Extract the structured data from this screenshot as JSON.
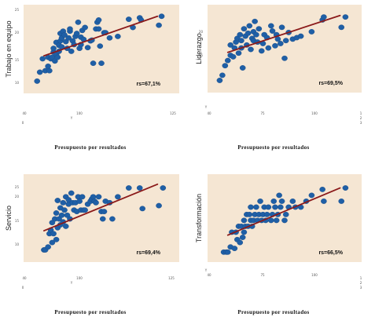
{
  "chart_data": [
    {
      "type": "scatter",
      "ylabel": "Trabajo en equipo",
      "xlabel": "Presupuesto por resultados",
      "annotation": "rs=67,1%",
      "xlim": [
        0,
        100
      ],
      "ylim": [
        0,
        100
      ],
      "y_ticks": [
        "25",
        "20",
        "15",
        "10"
      ],
      "x_ticks": [
        "40",
        "100",
        "125"
      ],
      "x_tick_extra": [
        "0",
        "Y"
      ],
      "colors": {
        "point": "#1f5fa6",
        "line": "#8b1a1a",
        "background": "#f5e6d3"
      },
      "trend": [
        [
          8,
          42
        ],
        [
          91,
          95
        ]
      ],
      "points": [
        [
          3,
          8
        ],
        [
          5,
          20
        ],
        [
          7,
          38
        ],
        [
          9,
          22
        ],
        [
          11,
          28
        ],
        [
          11,
          40
        ],
        [
          12,
          22
        ],
        [
          13,
          38
        ],
        [
          14,
          40
        ],
        [
          15,
          47
        ],
        [
          15,
          52
        ],
        [
          16,
          35
        ],
        [
          17,
          60
        ],
        [
          17,
          44
        ],
        [
          18,
          40
        ],
        [
          19,
          56
        ],
        [
          19,
          48
        ],
        [
          20,
          72
        ],
        [
          20,
          62
        ],
        [
          21,
          54
        ],
        [
          21,
          66
        ],
        [
          22,
          75
        ],
        [
          23,
          70
        ],
        [
          24,
          61
        ],
        [
          25,
          52
        ],
        [
          26,
          66
        ],
        [
          27,
          75
        ],
        [
          27,
          78
        ],
        [
          28,
          48
        ],
        [
          29,
          62
        ],
        [
          30,
          57
        ],
        [
          31,
          68
        ],
        [
          32,
          72
        ],
        [
          33,
          87
        ],
        [
          34,
          52
        ],
        [
          35,
          57
        ],
        [
          35,
          67
        ],
        [
          36,
          76
        ],
        [
          37,
          64
        ],
        [
          38,
          80
        ],
        [
          40,
          53
        ],
        [
          42,
          62
        ],
        [
          43,
          63
        ],
        [
          44,
          32
        ],
        [
          46,
          78
        ],
        [
          47,
          87
        ],
        [
          48,
          90
        ],
        [
          48,
          78
        ],
        [
          49,
          55
        ],
        [
          50,
          32
        ],
        [
          52,
          73
        ],
        [
          53,
          73
        ],
        [
          56,
          66
        ],
        [
          62,
          68
        ],
        [
          70,
          91
        ],
        [
          73,
          80
        ],
        [
          78,
          93
        ],
        [
          79,
          90
        ],
        [
          92,
          83
        ],
        [
          94,
          95
        ]
      ]
    },
    {
      "type": "scatter",
      "ylabel": "Liderazgo",
      "xlabel": "Presupuesto por resultados",
      "annotation": "rs=69,5%",
      "xlim": [
        0,
        100
      ],
      "ylim": [
        0,
        100
      ],
      "y_ticks": [
        "20",
        "15"
      ],
      "x_ticks": [
        "40",
        "75",
        "100"
      ],
      "x_tick_extra": [
        "1",
        "2",
        "3",
        "Y"
      ],
      "colors": {
        "point": "#1f5fa6",
        "line": "#8b1a1a",
        "background": "#f5e6d3"
      },
      "trend": [
        [
          8,
          46
        ],
        [
          91,
          96
        ]
      ],
      "points": [
        [
          2,
          8
        ],
        [
          4,
          15
        ],
        [
          6,
          28
        ],
        [
          8,
          35
        ],
        [
          10,
          42
        ],
        [
          10,
          56
        ],
        [
          12,
          40
        ],
        [
          13,
          52
        ],
        [
          14,
          60
        ],
        [
          15,
          65
        ],
        [
          16,
          45
        ],
        [
          17,
          70
        ],
        [
          18,
          52
        ],
        [
          18,
          62
        ],
        [
          19,
          25
        ],
        [
          20,
          78
        ],
        [
          21,
          68
        ],
        [
          22,
          56
        ],
        [
          23,
          72
        ],
        [
          24,
          82
        ],
        [
          25,
          50
        ],
        [
          26,
          65
        ],
        [
          27,
          62
        ],
        [
          27,
          74
        ],
        [
          28,
          88
        ],
        [
          29,
          70
        ],
        [
          30,
          60
        ],
        [
          31,
          78
        ],
        [
          33,
          48
        ],
        [
          34,
          58
        ],
        [
          35,
          70
        ],
        [
          37,
          66
        ],
        [
          38,
          52
        ],
        [
          40,
          82
        ],
        [
          41,
          75
        ],
        [
          43,
          55
        ],
        [
          44,
          70
        ],
        [
          45,
          64
        ],
        [
          47,
          58
        ],
        [
          48,
          80
        ],
        [
          50,
          38
        ],
        [
          51,
          62
        ],
        [
          53,
          73
        ],
        [
          56,
          64
        ],
        [
          59,
          66
        ],
        [
          62,
          68
        ],
        [
          70,
          74
        ],
        [
          78,
          90
        ],
        [
          79,
          94
        ],
        [
          92,
          80
        ],
        [
          95,
          94
        ]
      ]
    },
    {
      "type": "scatter",
      "ylabel": "Servicio",
      "xlabel": "Presupuesto por resultados",
      "annotation": "rs=69,4%",
      "xlim": [
        0,
        100
      ],
      "ylim": [
        0,
        100
      ],
      "y_ticks": [
        "25",
        "20",
        "15",
        "10"
      ],
      "x_ticks": [
        "40",
        "100",
        "125"
      ],
      "x_tick_extra": [
        "0",
        "Y"
      ],
      "colors": {
        "point": "#1f5fa6",
        "line": "#8b1a1a",
        "background": "#f5e6d3"
      },
      "trend": [
        [
          8,
          34
        ],
        [
          91,
          97
        ]
      ],
      "points": [
        [
          8,
          8
        ],
        [
          9,
          8
        ],
        [
          11,
          12
        ],
        [
          12,
          30
        ],
        [
          13,
          35
        ],
        [
          14,
          18
        ],
        [
          14,
          45
        ],
        [
          15,
          30
        ],
        [
          16,
          50
        ],
        [
          17,
          22
        ],
        [
          17,
          58
        ],
        [
          18,
          38
        ],
        [
          18,
          75
        ],
        [
          19,
          50
        ],
        [
          20,
          42
        ],
        [
          20,
          65
        ],
        [
          21,
          55
        ],
        [
          22,
          46
        ],
        [
          22,
          72
        ],
        [
          23,
          62
        ],
        [
          24,
          40
        ],
        [
          24,
          80
        ],
        [
          25,
          55
        ],
        [
          26,
          70
        ],
        [
          26,
          76
        ],
        [
          27,
          50
        ],
        [
          28,
          85
        ],
        [
          29,
          72
        ],
        [
          30,
          62
        ],
        [
          31,
          72
        ],
        [
          32,
          60
        ],
        [
          33,
          80
        ],
        [
          34,
          74
        ],
        [
          35,
          62
        ],
        [
          36,
          80
        ],
        [
          37,
          62
        ],
        [
          38,
          62
        ],
        [
          40,
          70
        ],
        [
          42,
          74
        ],
        [
          43,
          77
        ],
        [
          44,
          80
        ],
        [
          45,
          74
        ],
        [
          46,
          72
        ],
        [
          48,
          80
        ],
        [
          50,
          60
        ],
        [
          51,
          50
        ],
        [
          52,
          60
        ],
        [
          53,
          74
        ],
        [
          56,
          72
        ],
        [
          58,
          50
        ],
        [
          62,
          80
        ],
        [
          70,
          92
        ],
        [
          78,
          92
        ],
        [
          80,
          64
        ],
        [
          92,
          68
        ],
        [
          95,
          92
        ]
      ]
    },
    {
      "type": "scatter",
      "ylabel": "Transformación",
      "xlabel": "Presupuesto por resultados",
      "annotation": "rs=66,5%",
      "xlim": [
        0,
        100
      ],
      "ylim": [
        0,
        100
      ],
      "y_ticks": [],
      "x_ticks": [
        "40",
        "75",
        "100"
      ],
      "x_tick_extra": [
        "1",
        "2",
        "3",
        "Y"
      ],
      "colors": {
        "point": "#1f5fa6",
        "line": "#8b1a1a",
        "background": "#f5e6d3"
      },
      "trend": [
        [
          8,
          28
        ],
        [
          91,
          92
        ]
      ],
      "points": [
        [
          5,
          5
        ],
        [
          7,
          5
        ],
        [
          8,
          5
        ],
        [
          10,
          12
        ],
        [
          11,
          32
        ],
        [
          13,
          10
        ],
        [
          14,
          32
        ],
        [
          15,
          22
        ],
        [
          16,
          40
        ],
        [
          17,
          18
        ],
        [
          18,
          40
        ],
        [
          19,
          25
        ],
        [
          20,
          32
        ],
        [
          20,
          48
        ],
        [
          21,
          40
        ],
        [
          22,
          56
        ],
        [
          23,
          40
        ],
        [
          24,
          56
        ],
        [
          25,
          48
        ],
        [
          25,
          66
        ],
        [
          26,
          40
        ],
        [
          27,
          48
        ],
        [
          28,
          56
        ],
        [
          29,
          66
        ],
        [
          30,
          48
        ],
        [
          31,
          56
        ],
        [
          32,
          74
        ],
        [
          33,
          48
        ],
        [
          34,
          56
        ],
        [
          35,
          66
        ],
        [
          36,
          48
        ],
        [
          37,
          56
        ],
        [
          38,
          66
        ],
        [
          40,
          48
        ],
        [
          41,
          56
        ],
        [
          42,
          74
        ],
        [
          43,
          66
        ],
        [
          44,
          48
        ],
        [
          45,
          56
        ],
        [
          46,
          82
        ],
        [
          47,
          66
        ],
        [
          48,
          74
        ],
        [
          50,
          48
        ],
        [
          51,
          56
        ],
        [
          53,
          66
        ],
        [
          56,
          74
        ],
        [
          58,
          66
        ],
        [
          62,
          66
        ],
        [
          66,
          74
        ],
        [
          70,
          82
        ],
        [
          78,
          90
        ],
        [
          79,
          74
        ],
        [
          92,
          74
        ],
        [
          95,
          92
        ]
      ]
    }
  ]
}
